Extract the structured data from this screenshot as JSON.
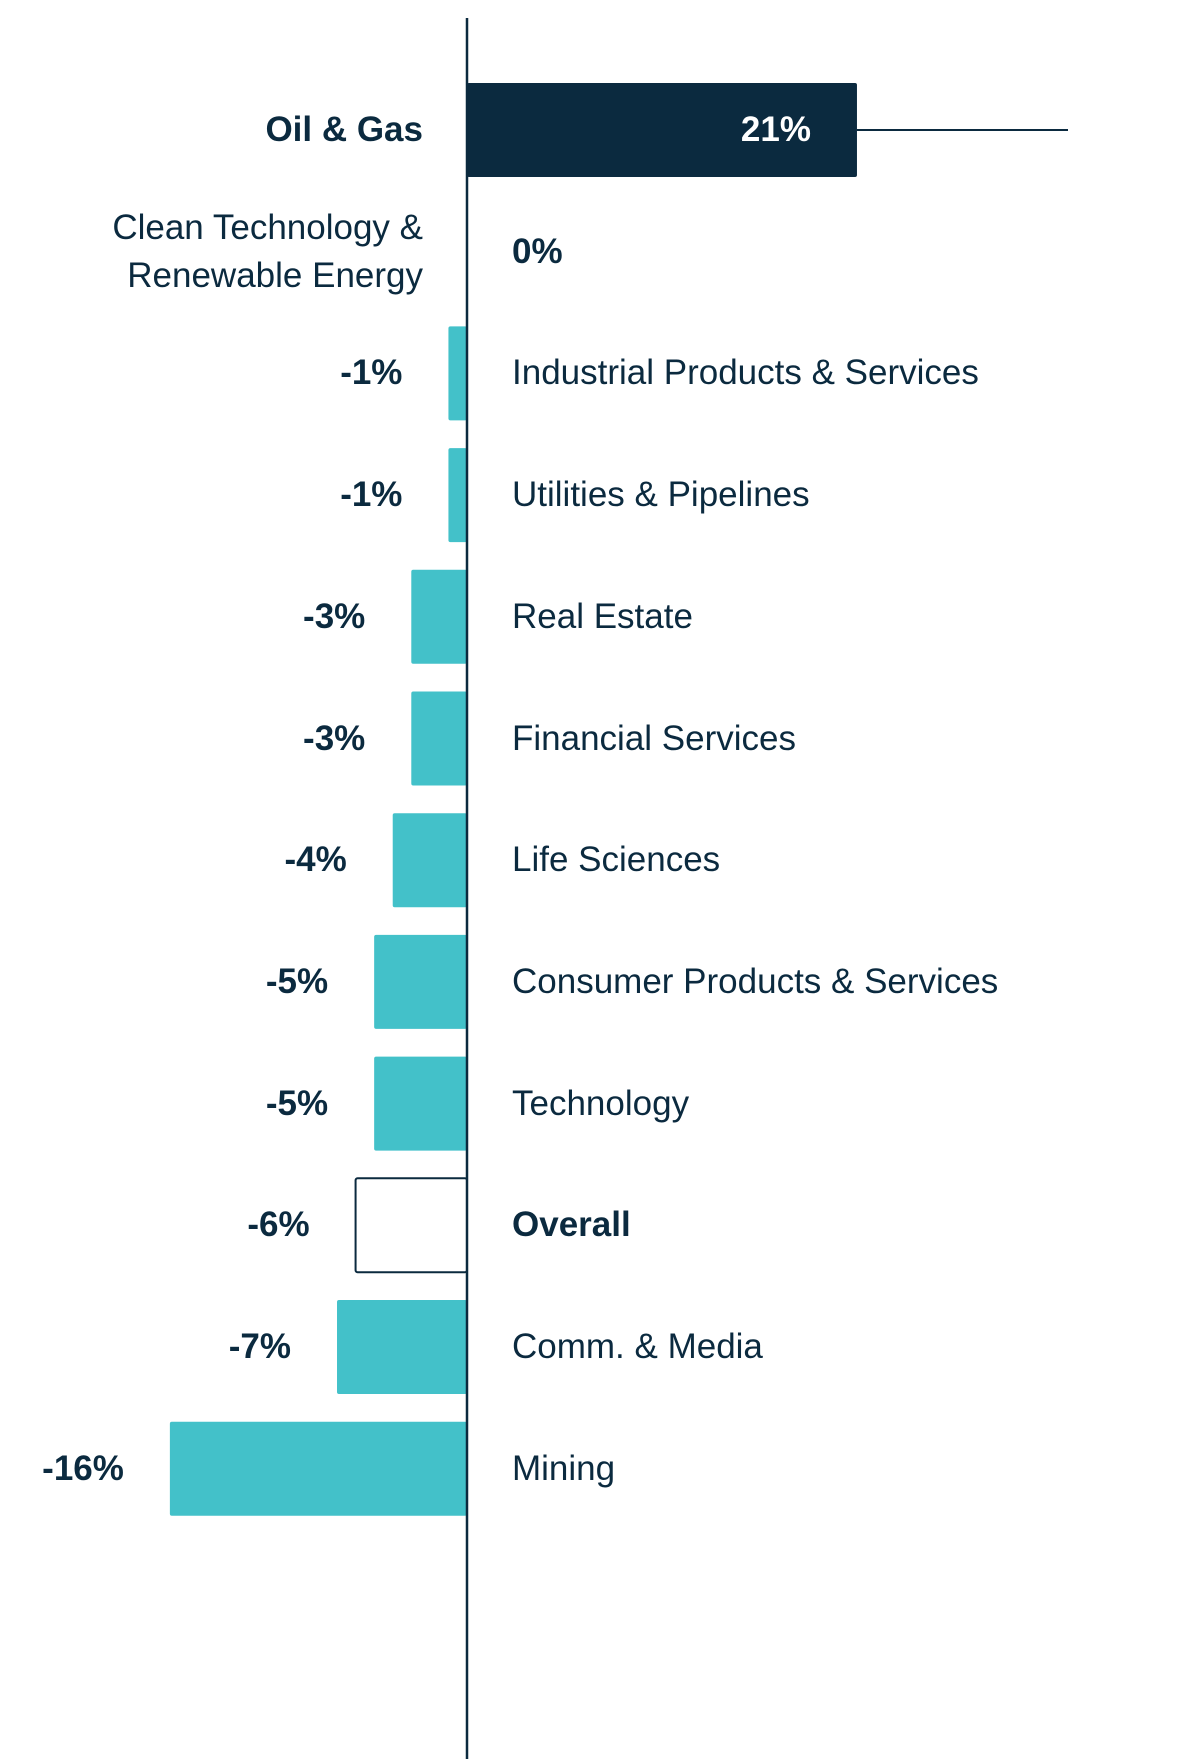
{
  "chart_data": {
    "type": "hbar",
    "categories": [
      "Oil & Gas",
      "Clean Technology & Renewable Energy",
      "Industrial Products & Services",
      "Utilities & Pipelines",
      "Real Estate",
      "Financial Services",
      "Life Sciences",
      "Consumer Products & Services",
      "Technology",
      "Overall",
      "Comm. & Media",
      "Mining"
    ],
    "values": [
      21,
      0,
      -1,
      -1,
      -3,
      -3,
      -4,
      -5,
      -5,
      -6,
      -7,
      -16
    ],
    "value_labels": [
      "21%",
      "0%",
      "-1%",
      "-1%",
      "-3%",
      "-3%",
      "-4%",
      "-5%",
      "-5%",
      "-6%",
      "-7%",
      "-16%"
    ],
    "colors": [
      "#0b2a3f",
      "#43c1c9",
      "#43c1c9",
      "#43c1c9",
      "#43c1c9",
      "#43c1c9",
      "#43c1c9",
      "#43c1c9",
      "#43c1c9",
      "#ffffff",
      "#43c1c9",
      "#43c1c9"
    ],
    "edge_color": "#0b2a3f",
    "bold": [
      true,
      false,
      false,
      false,
      false,
      false,
      false,
      false,
      false,
      true,
      false,
      false
    ]
  }
}
